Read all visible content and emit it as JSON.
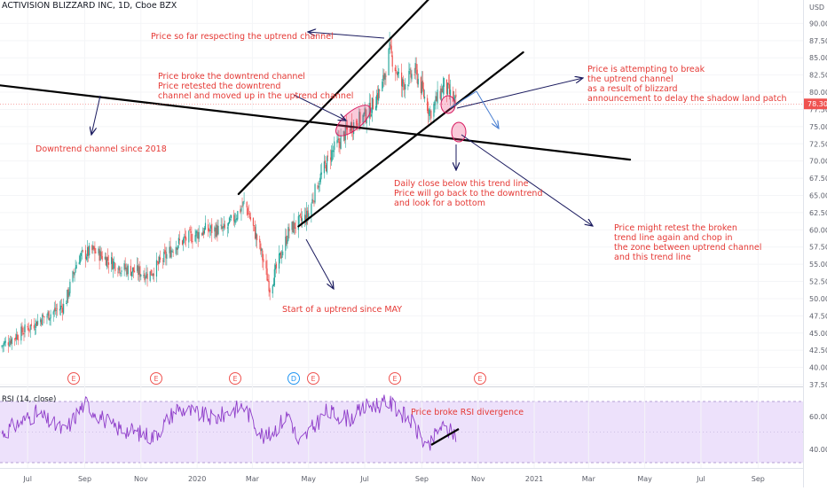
{
  "header": {
    "title": "ACTIVISION BLIZZARD INC, 1D, Cboe BZX"
  },
  "price_axis": {
    "currency": "USD",
    "ticks": [
      "90.00",
      "87.50",
      "85.00",
      "82.50",
      "80.00",
      "77.50",
      "75.00",
      "72.50",
      "70.00",
      "67.50",
      "65.00",
      "62.50",
      "60.00",
      "57.50",
      "55.00",
      "52.50",
      "50.00",
      "47.50",
      "45.00",
      "42.50",
      "40.00",
      "37.50"
    ],
    "last_price": "78.30"
  },
  "rsi_panel": {
    "label": "RSI (14, close)",
    "ticks": [
      "60.00",
      "40.00"
    ]
  },
  "time_axis": {
    "labels": [
      "Jul",
      "Sep",
      "Nov",
      "2020",
      "Mar",
      "May",
      "Jul",
      "Sep",
      "Nov",
      "2021",
      "Mar",
      "May",
      "Jul",
      "Sep"
    ]
  },
  "event_markers": [
    "E",
    "E",
    "E",
    "D",
    "E",
    "E",
    "E"
  ],
  "annotations": [
    "Price so far respecting the uptrend channel",
    "Price broke the downtrend channel",
    "Price retested the downtrend",
    "channel and moved up in the uptrend channel",
    "Downtrend channel since 2018",
    "Start of a uptrend since MAY",
    "Daily close below this trend line",
    "Price will go back to the downtrend",
    "and look for a bottom",
    "Price is attempting to break",
    "the uptrend channel",
    "as a result of blizzard",
    "announcement to delay the shadow land patch",
    "Price might retest the broken",
    "trend line again and chop in",
    "the zone between uptrend channel",
    "and this trend line",
    "Price broke RSI divergence"
  ],
  "colors": {
    "up": "#26a69a",
    "down": "#ef5350",
    "annotation": "#e53935",
    "arrow": "#1a1a5e",
    "rsi_line": "#8e3cc9",
    "rsi_band": "#ede1fb",
    "price_label": "#ef5350"
  },
  "chart_data": {
    "type": "candlestick",
    "title": "ACTIVISION BLIZZARD INC, 1D, Cboe BZX",
    "y_range": [
      37.5,
      92.5
    ],
    "x_range": [
      "2019-06-01",
      "2021-10-15"
    ],
    "last_close": 78.3,
    "anchors": [
      [
        "2019-06-01",
        43
      ],
      [
        "2019-07-15",
        47
      ],
      [
        "2019-08-10",
        49
      ],
      [
        "2019-08-25",
        56
      ],
      [
        "2019-09-10",
        57
      ],
      [
        "2019-10-10",
        54.5
      ],
      [
        "2019-11-10",
        53.5
      ],
      [
        "2019-12-10",
        58
      ],
      [
        "2020-01-10",
        60
      ],
      [
        "2020-02-01",
        60
      ],
      [
        "2020-02-22",
        64
      ],
      [
        "2020-03-10",
        57
      ],
      [
        "2020-03-20",
        51.5
      ],
      [
        "2020-04-10",
        60
      ],
      [
        "2020-04-30",
        62
      ],
      [
        "2020-05-10",
        66.5
      ],
      [
        "2020-05-25",
        71
      ],
      [
        "2020-06-15",
        75
      ],
      [
        "2020-07-05",
        77
      ],
      [
        "2020-07-20",
        81
      ],
      [
        "2020-07-28",
        86
      ],
      [
        "2020-08-10",
        81
      ],
      [
        "2020-08-25",
        83
      ],
      [
        "2020-09-10",
        77
      ],
      [
        "2020-09-25",
        81
      ],
      [
        "2020-10-08",
        78.3
      ]
    ],
    "trend_lines": [
      {
        "name": "downtrend",
        "points": [
          [
            "2019-06-01",
            81
          ],
          [
            "2021-04-15",
            70.2
          ]
        ]
      },
      {
        "name": "uptrend-upper",
        "points": [
          [
            "2020-02-15",
            65.2
          ],
          [
            "2020-09-12",
            94
          ]
        ]
      },
      {
        "name": "uptrend-lower",
        "points": [
          [
            "2020-04-20",
            60.5
          ],
          [
            "2020-12-20",
            85.8
          ]
        ]
      }
    ],
    "rsi": {
      "y_range": [
        20,
        80
      ],
      "band": [
        30,
        70
      ],
      "anchors": [
        [
          "2019-06-01",
          46
        ],
        [
          "2019-07-10",
          62
        ],
        [
          "2019-08-10",
          48
        ],
        [
          "2019-09-01",
          70
        ],
        [
          "2019-10-01",
          52
        ],
        [
          "2019-11-15",
          44
        ],
        [
          "2019-12-10",
          66
        ],
        [
          "2020-01-20",
          58
        ],
        [
          "2020-02-20",
          68
        ],
        [
          "2020-03-15",
          42
        ],
        [
          "2020-04-10",
          62
        ],
        [
          "2020-04-20",
          38
        ],
        [
          "2020-05-20",
          63
        ],
        [
          "2020-06-15",
          58
        ],
        [
          "2020-07-05",
          68
        ],
        [
          "2020-07-28",
          70
        ],
        [
          "2020-08-20",
          56
        ],
        [
          "2020-09-08",
          34
        ],
        [
          "2020-09-20",
          52
        ],
        [
          "2020-10-08",
          46
        ]
      ]
    }
  }
}
